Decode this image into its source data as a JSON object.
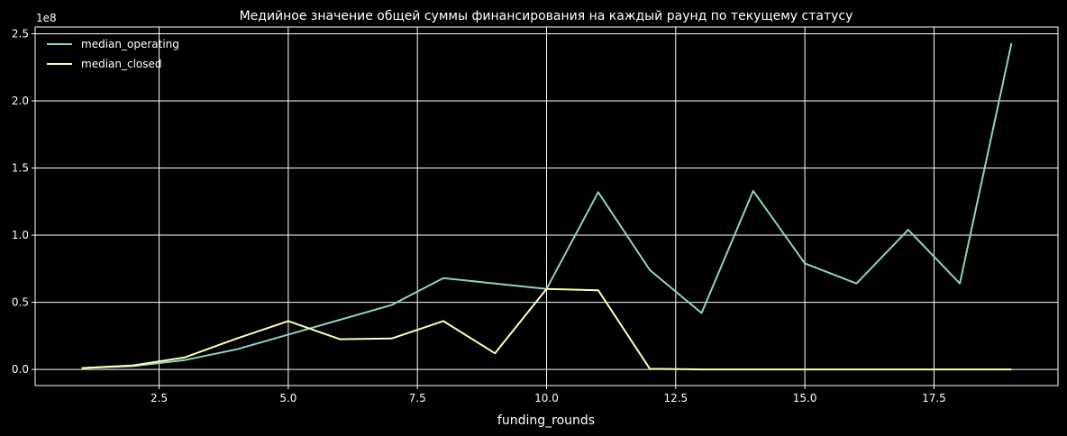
{
  "chart_data": {
    "type": "line",
    "title": "Медийное значение общей суммы финансирования на каждый раунд по текущему статусу",
    "xlabel": "funding_rounds",
    "ylabel": "",
    "y_exponent_label": "1e8",
    "xlim": [
      0.1,
      19.9
    ],
    "ylim": [
      -12000000,
      255000000
    ],
    "x_ticks": [
      2.5,
      5.0,
      7.5,
      10.0,
      12.5,
      15.0,
      17.5
    ],
    "x_tick_labels": [
      "2.5",
      "5.0",
      "7.5",
      "10.0",
      "12.5",
      "15.0",
      "17.5"
    ],
    "y_ticks": [
      0,
      50000000,
      100000000,
      150000000,
      200000000,
      250000000
    ],
    "y_tick_labels": [
      "0.0",
      "0.5",
      "1.0",
      "1.5",
      "2.0",
      "2.5"
    ],
    "grid": true,
    "legend_position": "top-left",
    "x": [
      1,
      2,
      3,
      4,
      5,
      6,
      7,
      8,
      9,
      10,
      11,
      12,
      13,
      14,
      15,
      16,
      17,
      18,
      19
    ],
    "series": [
      {
        "name": "median_operating",
        "color": "#8dd3c7",
        "values": [
          1000000,
          2500000,
          7000000,
          15000000,
          26000000,
          37000000,
          48000000,
          68000000,
          64000000,
          60000000,
          132000000,
          74000000,
          42000000,
          133000000,
          79000000,
          64000000,
          104000000,
          64000000,
          243000000
        ]
      },
      {
        "name": "median_closed",
        "color": "#feffb3",
        "values": [
          1000000,
          3000000,
          9000000,
          23000000,
          36000000,
          22500000,
          23000000,
          36000000,
          12000000,
          60000000,
          59000000,
          500000,
          0,
          0,
          0,
          0,
          0,
          0,
          0
        ]
      }
    ]
  }
}
